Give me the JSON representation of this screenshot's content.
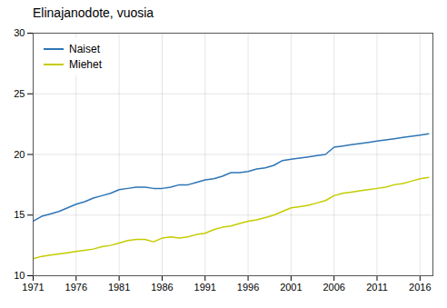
{
  "chart_data": {
    "type": "line",
    "title": "Elinajanodote, vuosia",
    "x": [
      1971,
      1972,
      1973,
      1974,
      1975,
      1976,
      1977,
      1978,
      1979,
      1980,
      1981,
      1982,
      1983,
      1984,
      1985,
      1986,
      1987,
      1988,
      1989,
      1990,
      1991,
      1992,
      1993,
      1994,
      1995,
      1996,
      1997,
      1998,
      1999,
      2000,
      2001,
      2002,
      2003,
      2004,
      2005,
      2006,
      2007,
      2008,
      2009,
      2010,
      2011,
      2012,
      2013,
      2014,
      2015,
      2016,
      2017
    ],
    "series": [
      {
        "name": "Naiset",
        "color": "#2E75B6",
        "values": [
          14.5,
          14.9,
          15.1,
          15.3,
          15.6,
          15.9,
          16.1,
          16.4,
          16.6,
          16.8,
          17.1,
          17.2,
          17.3,
          17.3,
          17.2,
          17.2,
          17.3,
          17.5,
          17.5,
          17.7,
          17.9,
          18.0,
          18.2,
          18.5,
          18.5,
          18.6,
          18.8,
          18.9,
          19.1,
          19.5,
          19.6,
          19.7,
          19.8,
          19.9,
          20.0,
          20.6,
          20.7,
          20.8,
          20.9,
          21.0,
          21.1,
          21.2,
          21.3,
          21.4,
          21.5,
          21.6,
          21.7
        ]
      },
      {
        "name": "Miehet",
        "color": "#C5CC00",
        "values": [
          11.4,
          11.6,
          11.7,
          11.8,
          11.9,
          12.0,
          12.1,
          12.2,
          12.4,
          12.5,
          12.7,
          12.9,
          13.0,
          13.0,
          12.8,
          13.1,
          13.2,
          13.1,
          13.2,
          13.4,
          13.5,
          13.8,
          14.0,
          14.1,
          14.3,
          14.5,
          14.6,
          14.8,
          15.0,
          15.3,
          15.6,
          15.7,
          15.8,
          16.0,
          16.2,
          16.6,
          16.8,
          16.9,
          17.0,
          17.1,
          17.2,
          17.3,
          17.5,
          17.6,
          17.8,
          18.0,
          18.1
        ]
      }
    ],
    "xlim": [
      1971,
      2017.5
    ],
    "xticks": [
      1971,
      1976,
      1981,
      1986,
      1991,
      1996,
      2001,
      2006,
      2011,
      2016
    ],
    "ylim": [
      10,
      30
    ],
    "yticks": [
      10,
      15,
      20,
      25,
      30
    ],
    "grid": true,
    "legend": "upper left"
  }
}
